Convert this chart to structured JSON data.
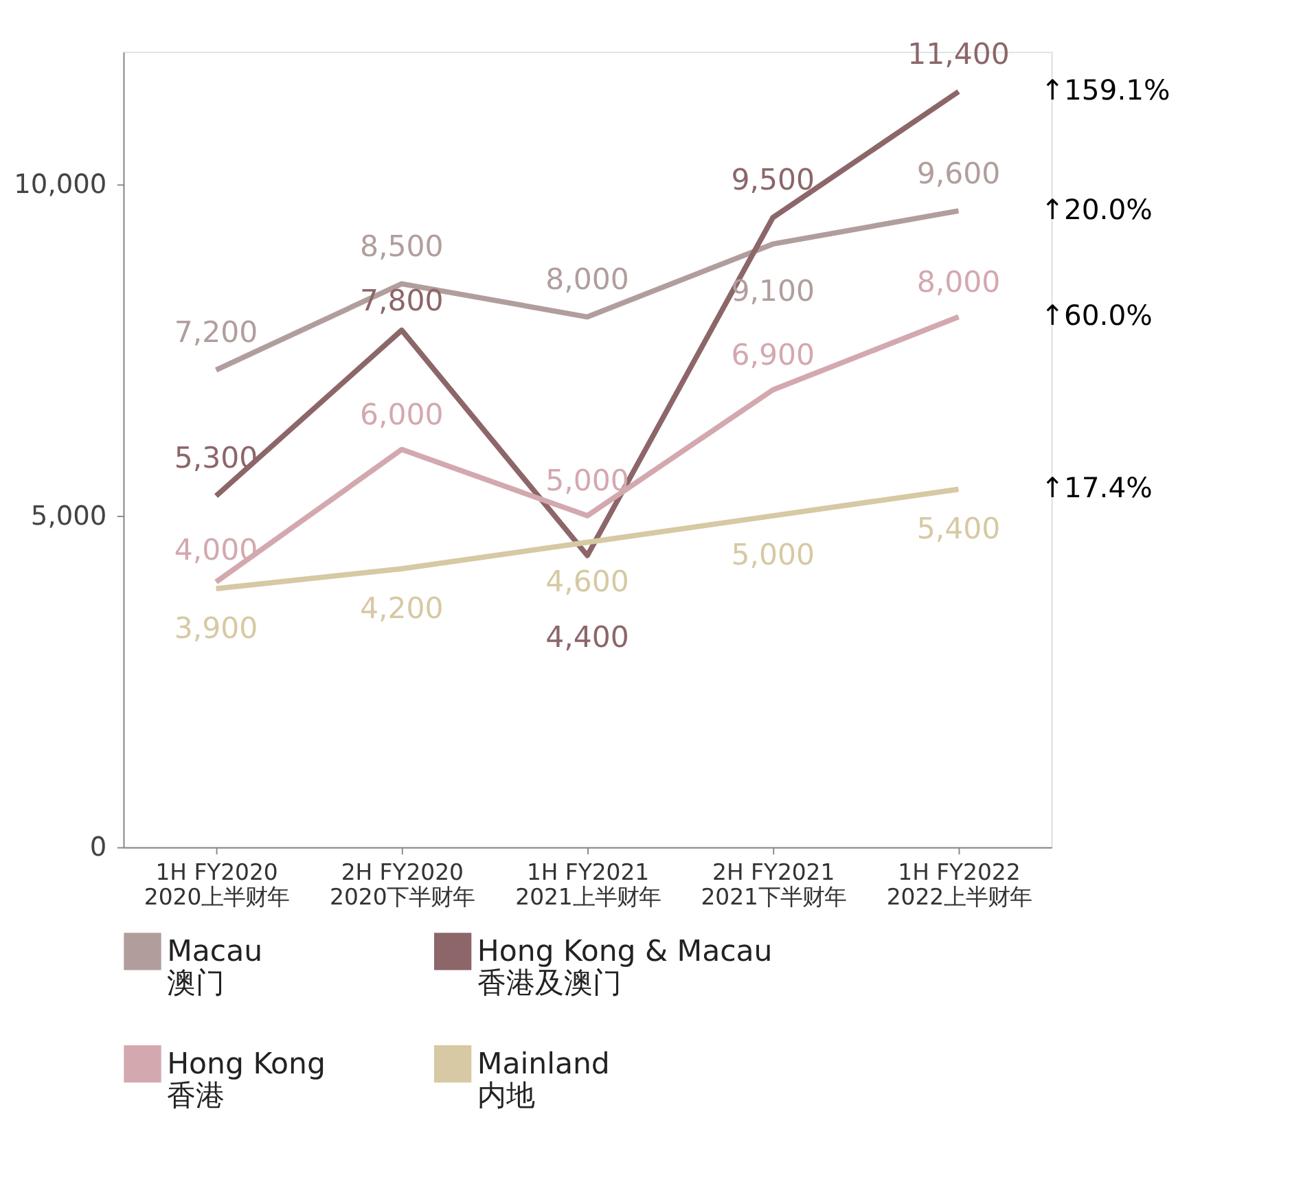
{
  "chart_data": {
    "type": "line",
    "categories": [
      "1H FY2020\n2020上半财年",
      "2H FY2020\n2020下半财年",
      "1H FY2021\n2021上半财年",
      "2H FY2021\n2021下半财年",
      "1H FY2022\n2022上半财年"
    ],
    "series": [
      {
        "name": "Macau\n澳门",
        "color": "#b19e9c",
        "values": [
          7200,
          8500,
          8000,
          9100,
          9600
        ],
        "value_labels": [
          "7,200",
          "8,500",
          "8,000",
          "9,100",
          "9,600"
        ]
      },
      {
        "name": "Hong Kong & Macau\n香港及澳门",
        "color": "#8c6669",
        "values": [
          5300,
          7800,
          4400,
          9500,
          11400
        ],
        "value_labels": [
          "5,300",
          "7,800",
          "4,400",
          "9,500",
          "11,400"
        ]
      },
      {
        "name": "Hong Kong\n香港",
        "color": "#d3a8ae",
        "values": [
          4000,
          6000,
          5000,
          6900,
          8000
        ],
        "value_labels": [
          "4,000",
          "6,000",
          "5,000",
          "6,900",
          "8,000"
        ]
      },
      {
        "name": "Mainland\n内地",
        "color": "#d6c9a3",
        "values": [
          3900,
          4200,
          4600,
          5000,
          5400
        ],
        "value_labels": [
          "3,900",
          "4,200",
          "4,600",
          "5,000",
          "5,400"
        ]
      }
    ],
    "ylim": [
      0,
      12000
    ],
    "yticks": [
      0,
      {
        "value": 5000,
        "label": "5,000"
      },
      {
        "value": 10000,
        "label": "10,000"
      }
    ],
    "grid": false,
    "legend": "bottom",
    "marker": "none",
    "line_style": "solid",
    "annotations": [
      {
        "text": "↑159.1%",
        "x": "1H FY2022\n2022上半财年",
        "y": 11400
      },
      {
        "text": "↑20.0%",
        "x": "1H FY2022\n2022上半财年",
        "y": 9600
      },
      {
        "text": "↑60.0%",
        "x": "1H FY2022\n2022上半财年",
        "y": 8000
      },
      {
        "text": "↑17.4%",
        "x": "1H FY2022\n2022上半财年",
        "y": 5400
      }
    ]
  }
}
